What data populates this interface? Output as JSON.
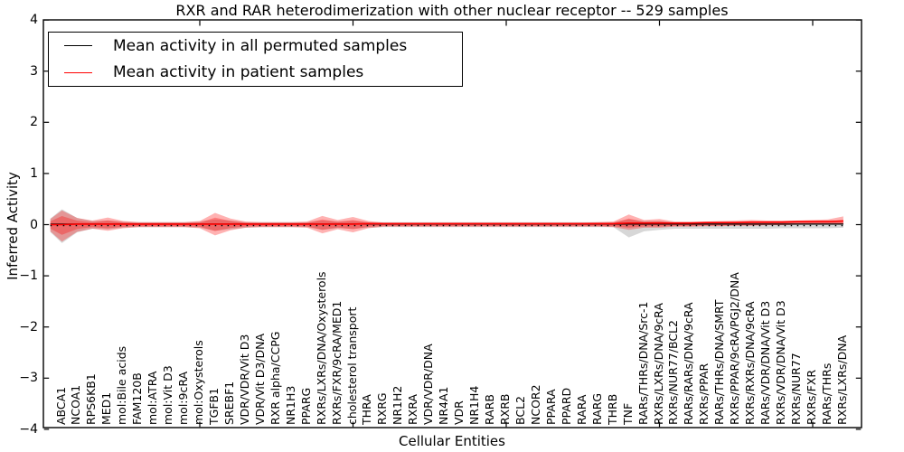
{
  "chart_data": {
    "type": "line",
    "title": "RXR and RAR heterodimerization with other nuclear receptor -- 529 samples",
    "xlabel": "Cellular Entities",
    "ylabel": "Inferred Activity",
    "ylim": [
      -4,
      4
    ],
    "grid": false,
    "legend_position": "upper-left",
    "yticks": [
      {
        "v": 4,
        "label": "4"
      },
      {
        "v": 3,
        "label": "3"
      },
      {
        "v": 2,
        "label": "2"
      },
      {
        "v": 1,
        "label": "1"
      },
      {
        "v": 0,
        "label": "0"
      },
      {
        "v": -1,
        "label": "−1"
      },
      {
        "v": -2,
        "label": "−2"
      },
      {
        "v": -3,
        "label": "−3"
      },
      {
        "v": -4,
        "label": "−4"
      }
    ],
    "x_major_tick_values": [
      10,
      20,
      30,
      40,
      50
    ],
    "zero_reference_line": {
      "y": 0,
      "style": "dotted",
      "color": "#000000"
    },
    "categories": [
      "ABCA1",
      "NCOA1",
      "RPS6KB1",
      "MED1",
      "mol:Bile acids",
      "FAM120B",
      "mol:ATRA",
      "mol:Vit D3",
      "mol:9cRA",
      "mol:Oxysterols",
      "TGFB1",
      "SREBF1",
      "VDR/VDR/Vit D3",
      "VDR/Vit D3/DNA",
      "RXR alpha/CCPG",
      "NR1H3",
      "PPARG",
      "RXRs/LXRs/DNA/Oxysterols",
      "RXRs/FXR/9cRA/MED1",
      "cholesterol transport",
      "THRA",
      "RXRG",
      "NR1H2",
      "RXRA",
      "VDR/VDR/DNA",
      "NR4A1",
      "VDR",
      "NR1H4",
      "RARB",
      "RXRB",
      "BCL2",
      "NCOR2",
      "PPARA",
      "PPARD",
      "RARA",
      "RARG",
      "THRB",
      "TNF",
      "RARs/THRs/DNA/Src-1",
      "RXRs/LXRs/DNA/9cRA",
      "RXRs/NUR77/BCL2",
      "RARs/RARs/DNA/9cRA",
      "RXRs/PPAR",
      "RARs/THRs/DNA/SMRT",
      "RXRs/PPAR/9cRA/PGJ2/DNA",
      "RXRs/RXRs/DNA/9cRA",
      "RARs/VDR/DNA/Vit D3",
      "RXRs/VDR/DNA/Vit D3",
      "RXRs/NUR77",
      "RXRs/FXR",
      "RARs/THRs",
      "RXRs/LXRs/DNA"
    ],
    "series": [
      {
        "name": "Mean activity in all permuted samples",
        "color": "#000000",
        "values": [
          0.01,
          0.01,
          0.01,
          0.01,
          0.01,
          0.01,
          0.01,
          0.01,
          0.01,
          0.01,
          0.01,
          0.01,
          0.01,
          0.01,
          0.01,
          0.01,
          0.01,
          0.01,
          0.01,
          0.01,
          0.01,
          0.01,
          0.01,
          0.01,
          0.01,
          0.01,
          0.01,
          0.01,
          0.01,
          0.01,
          0.01,
          0.01,
          0.01,
          0.01,
          0.01,
          0.01,
          0.01,
          0.01,
          0.01,
          0.01,
          0.01,
          0.01,
          0.01,
          0.01,
          0.01,
          0.01,
          0.01,
          0.01,
          0.01,
          0.01,
          0.01,
          0.01
        ]
      },
      {
        "name": "Mean activity in patient samples",
        "color": "#ff0000",
        "values": [
          0.0,
          0.01,
          0.01,
          0.01,
          0.01,
          0.01,
          0.01,
          0.01,
          0.01,
          0.01,
          0.01,
          0.01,
          0.01,
          0.01,
          0.01,
          0.01,
          0.01,
          0.01,
          0.01,
          0.01,
          0.02,
          0.02,
          0.02,
          0.02,
          0.02,
          0.02,
          0.02,
          0.02,
          0.02,
          0.02,
          0.02,
          0.02,
          0.02,
          0.02,
          0.02,
          0.02,
          0.02,
          0.03,
          0.03,
          0.03,
          0.03,
          0.03,
          0.04,
          0.04,
          0.04,
          0.05,
          0.05,
          0.05,
          0.06,
          0.06,
          0.06,
          0.07
        ]
      }
    ],
    "bands": [
      {
        "name": "permuted samples spread",
        "color": "rgba(110,110,110,0.28)",
        "upper": [
          0.3,
          0.13,
          0.07,
          0.08,
          0.06,
          0.05,
          0.05,
          0.05,
          0.05,
          0.06,
          0.1,
          0.08,
          0.05,
          0.05,
          0.05,
          0.05,
          0.05,
          0.08,
          0.06,
          0.07,
          0.05,
          0.05,
          0.05,
          0.05,
          0.05,
          0.05,
          0.05,
          0.05,
          0.05,
          0.05,
          0.05,
          0.05,
          0.05,
          0.05,
          0.05,
          0.05,
          0.05,
          0.1,
          0.07,
          0.07,
          0.05,
          0.05,
          0.04,
          0.04,
          0.04,
          0.04,
          0.04,
          0.04,
          0.04,
          0.04,
          0.04,
          0.04
        ],
        "lower": [
          -0.36,
          -0.15,
          -0.08,
          -0.09,
          -0.06,
          -0.05,
          -0.05,
          -0.05,
          -0.05,
          -0.06,
          -0.12,
          -0.09,
          -0.06,
          -0.05,
          -0.05,
          -0.05,
          -0.05,
          -0.1,
          -0.07,
          -0.08,
          -0.06,
          -0.05,
          -0.05,
          -0.05,
          -0.05,
          -0.05,
          -0.05,
          -0.05,
          -0.05,
          -0.05,
          -0.05,
          -0.05,
          -0.05,
          -0.05,
          -0.05,
          -0.05,
          -0.05,
          -0.25,
          -0.13,
          -0.1,
          -0.08,
          -0.08,
          -0.08,
          -0.08,
          -0.08,
          -0.08,
          -0.08,
          -0.07,
          -0.07,
          -0.07,
          -0.07,
          -0.06
        ]
      },
      {
        "name": "patient samples spread",
        "color": "rgba(255,0,0,0.30)",
        "upper": [
          0.28,
          0.13,
          0.08,
          0.14,
          0.07,
          0.05,
          0.05,
          0.05,
          0.05,
          0.07,
          0.23,
          0.12,
          0.06,
          0.05,
          0.05,
          0.05,
          0.06,
          0.17,
          0.09,
          0.15,
          0.07,
          0.04,
          0.04,
          0.04,
          0.04,
          0.04,
          0.04,
          0.04,
          0.04,
          0.04,
          0.04,
          0.04,
          0.04,
          0.04,
          0.04,
          0.05,
          0.06,
          0.2,
          0.09,
          0.11,
          0.06,
          0.06,
          0.06,
          0.07,
          0.08,
          0.09,
          0.08,
          0.08,
          0.08,
          0.09,
          0.1,
          0.16
        ],
        "lower": [
          -0.33,
          -0.14,
          -0.08,
          -0.12,
          -0.07,
          -0.05,
          -0.05,
          -0.05,
          -0.05,
          -0.07,
          -0.21,
          -0.11,
          -0.06,
          -0.05,
          -0.05,
          -0.05,
          -0.06,
          -0.17,
          -0.09,
          -0.15,
          -0.07,
          -0.04,
          -0.04,
          -0.04,
          -0.04,
          -0.04,
          -0.04,
          -0.04,
          -0.04,
          -0.04,
          -0.04,
          -0.04,
          -0.04,
          -0.04,
          -0.04,
          -0.04,
          -0.05,
          -0.1,
          -0.06,
          -0.06,
          -0.04,
          -0.04,
          -0.03,
          -0.03,
          -0.02,
          -0.02,
          -0.01,
          -0.01,
          0.0,
          0.0,
          0.0,
          0.01
        ]
      }
    ]
  }
}
